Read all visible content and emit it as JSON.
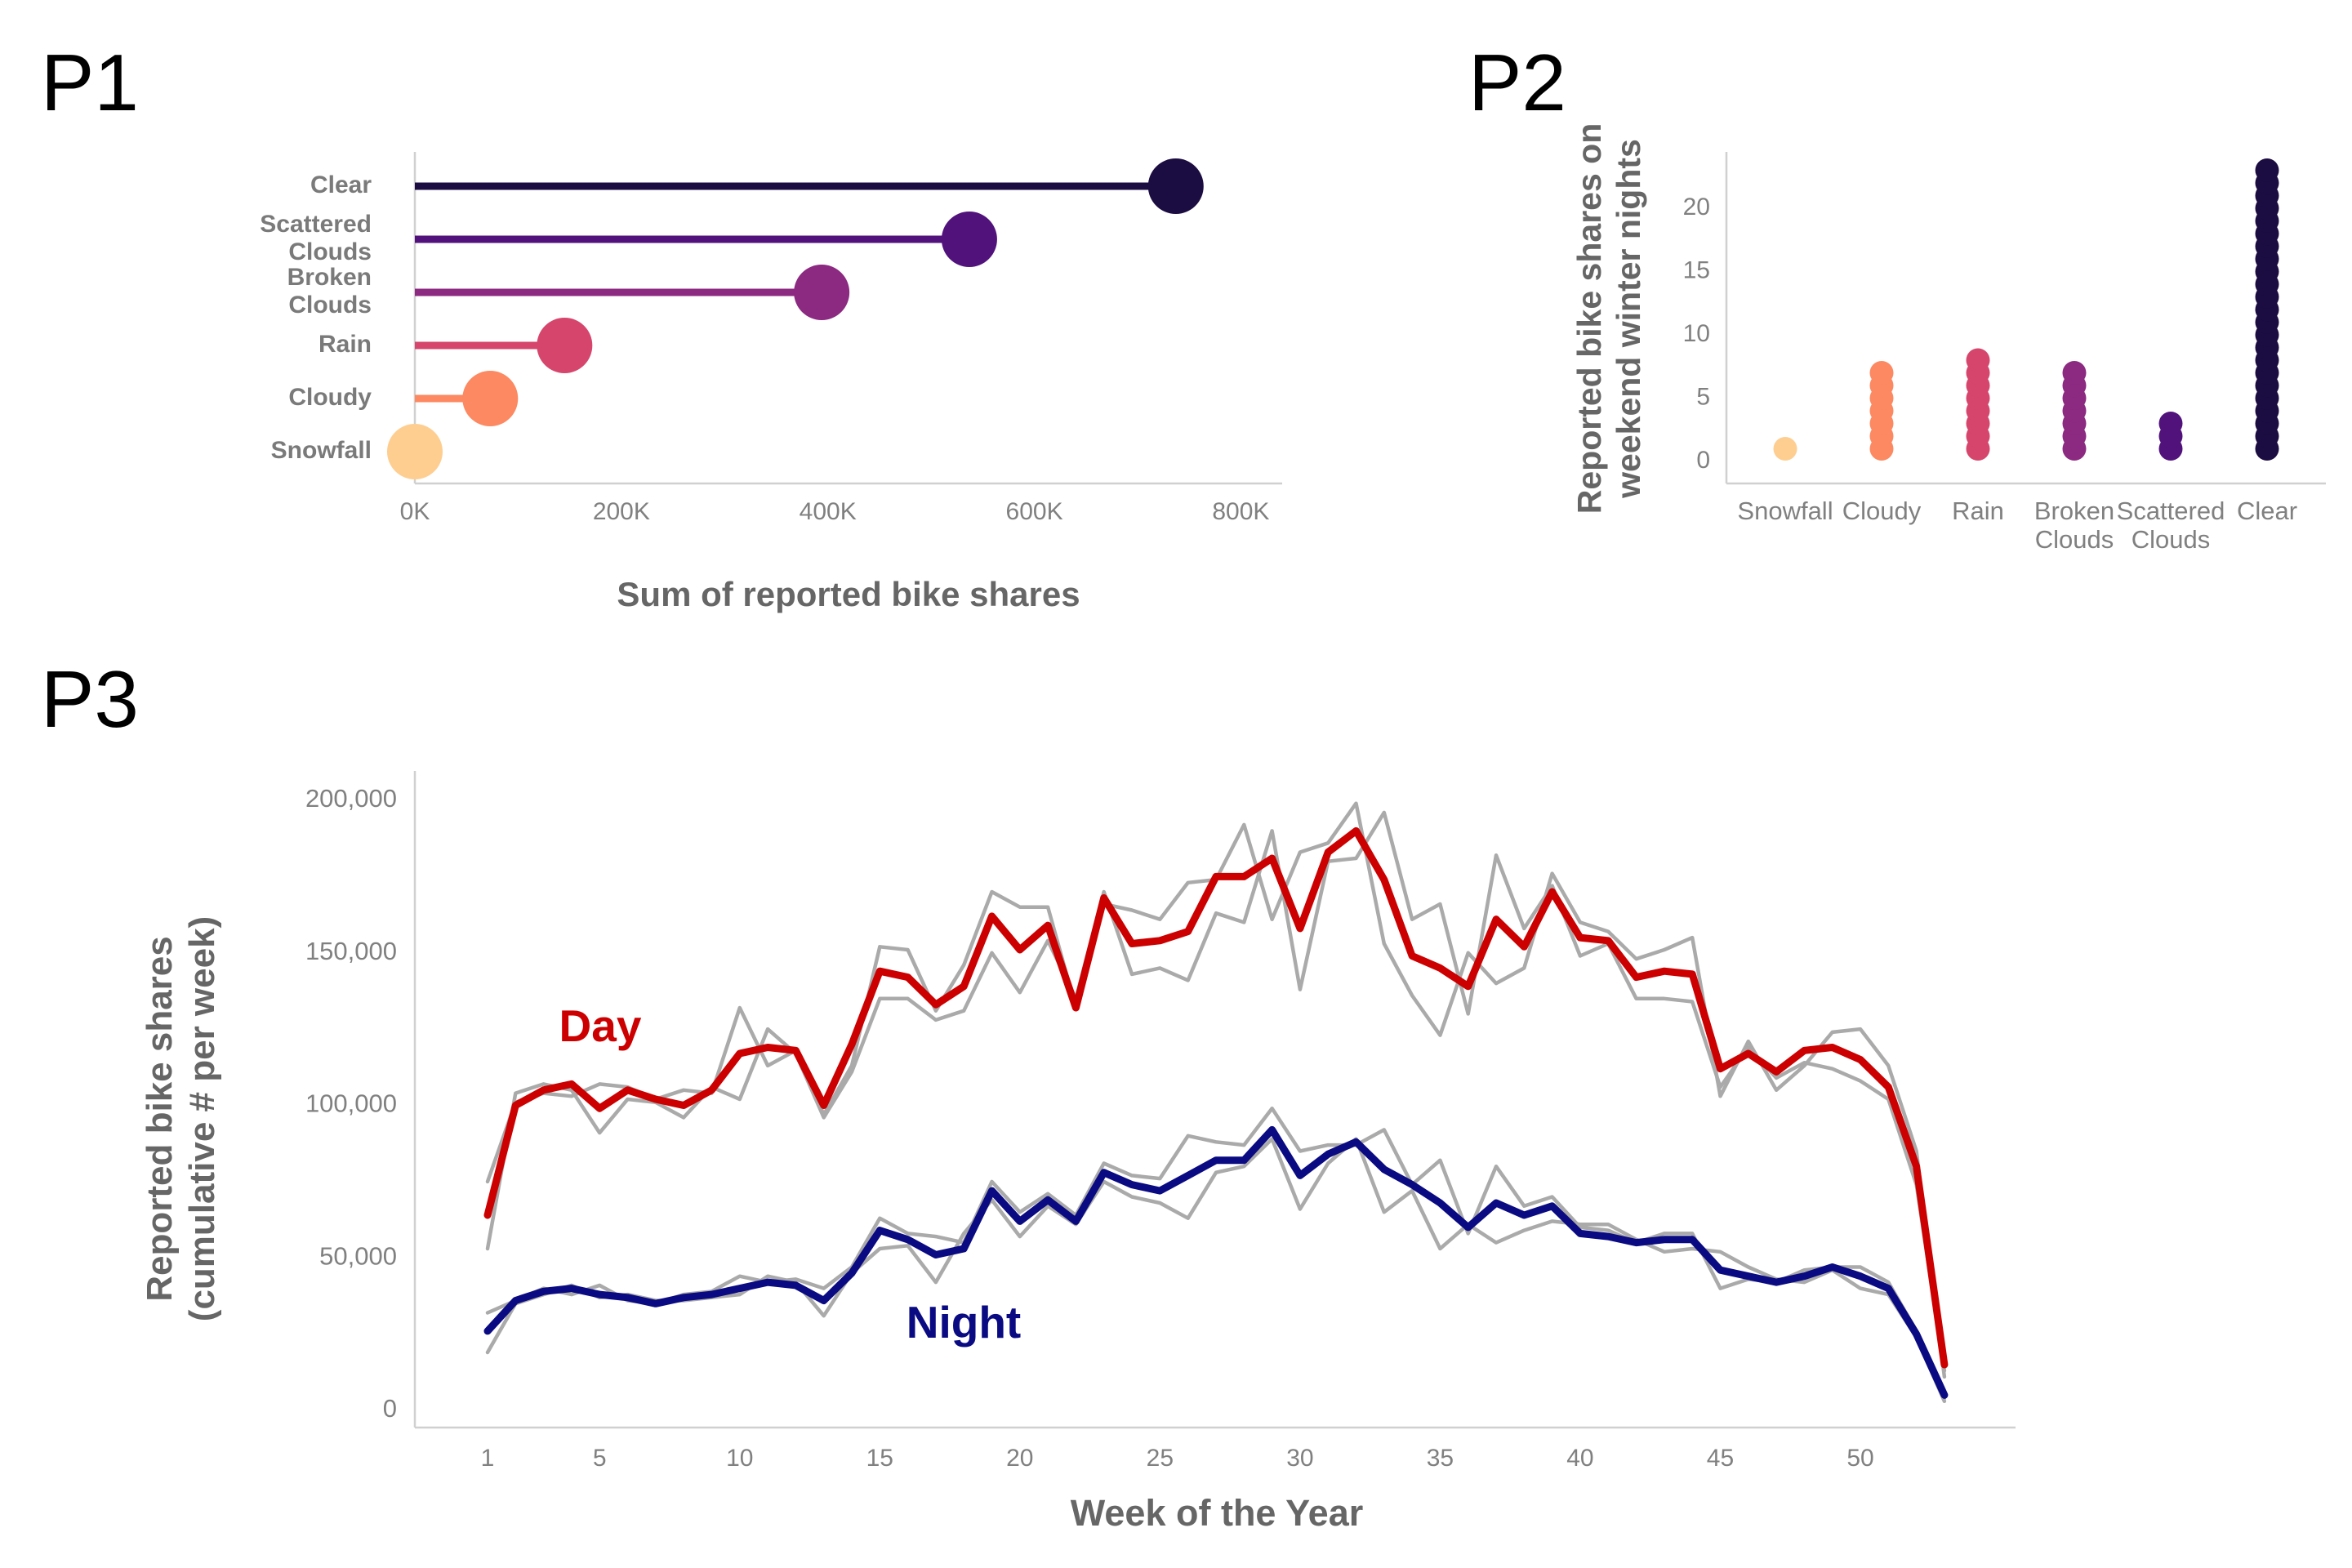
{
  "panels": {
    "p1": "P1",
    "p2": "P2",
    "p3": "P3"
  },
  "chart_data": [
    {
      "id": "P1",
      "type": "lollipop",
      "orientation": "horizontal",
      "categories": [
        "Clear",
        "Scattered Clouds",
        "Broken Clouds",
        "Rain",
        "Cloudy",
        "Snowfall"
      ],
      "category_labels": [
        [
          "Clear"
        ],
        [
          "Scattered",
          "Clouds"
        ],
        [
          "Broken",
          "Clouds"
        ],
        [
          "Rain"
        ],
        [
          "Cloudy"
        ],
        [
          "Snowfall"
        ]
      ],
      "values": [
        737000,
        537000,
        394000,
        145000,
        73000,
        0
      ],
      "colors": [
        "#1b0c41",
        "#51127c",
        "#8c2981",
        "#d6456c",
        "#fc8961",
        "#fece91"
      ],
      "xlim": [
        0,
        840000
      ],
      "xticks": [
        0,
        200000,
        400000,
        600000,
        800000
      ],
      "xtick_labels": [
        "0K",
        "200K",
        "400K",
        "600K",
        "800K"
      ],
      "xlabel": "Sum of reported bike shares",
      "ylabel": ""
    },
    {
      "id": "P2",
      "type": "dotplot",
      "categories": [
        "Snowfall",
        "Cloudy",
        "Rain",
        "Broken Clouds",
        "Scattered Clouds",
        "Clear"
      ],
      "category_labels": [
        [
          "Snowfall"
        ],
        [
          "Cloudy"
        ],
        [
          "Rain"
        ],
        [
          "Broken",
          "Clouds"
        ],
        [
          "Scattered",
          "Clouds"
        ],
        [
          "Clear"
        ]
      ],
      "counts": [
        1,
        7,
        8,
        7,
        3,
        23
      ],
      "colors": [
        "#fece91",
        "#fc8961",
        "#d6456c",
        "#8c2981",
        "#51127c",
        "#1b0c41"
      ],
      "ylim": [
        0,
        24
      ],
      "yticks": [
        0,
        5,
        10,
        15,
        20
      ],
      "ytick_labels": [
        "0",
        "5",
        "10",
        "15",
        "20"
      ],
      "ylabel_lines": [
        "Reported bike shares on",
        "weekend winter nights"
      ],
      "xlabel": ""
    },
    {
      "id": "P3",
      "type": "line",
      "x": [
        1,
        2,
        3,
        4,
        5,
        6,
        7,
        8,
        9,
        10,
        11,
        12,
        13,
        14,
        15,
        16,
        17,
        18,
        19,
        20,
        21,
        22,
        23,
        24,
        25,
        26,
        27,
        28,
        29,
        30,
        31,
        32,
        33,
        34,
        35,
        36,
        37,
        38,
        39,
        40,
        41,
        42,
        43,
        44,
        45,
        46,
        47,
        48,
        49,
        50,
        51,
        52,
        53
      ],
      "series": [
        {
          "name": "Day",
          "role": "highlight",
          "color": "#cc0000",
          "values": [
            64000,
            100000,
            105000,
            107000,
            99000,
            105000,
            102000,
            100000,
            105000,
            117000,
            119000,
            118000,
            100000,
            120000,
            144000,
            142000,
            133000,
            139000,
            162000,
            151000,
            159000,
            132000,
            168000,
            153000,
            154000,
            157000,
            175000,
            175000,
            181000,
            158000,
            183000,
            190000,
            174000,
            149000,
            145000,
            139000,
            161000,
            152000,
            170000,
            155000,
            154000,
            142000,
            144000,
            143000,
            112000,
            117000,
            111000,
            118000,
            119000,
            115000,
            106000,
            80000,
            15000
          ]
        },
        {
          "name": "Day (year A)",
          "role": "context",
          "color": "#aaaaaa",
          "values": [
            75000,
            101000,
            104000,
            103000,
            107000,
            106000,
            102000,
            105000,
            104000,
            132000,
            113000,
            118000,
            97000,
            113000,
            152000,
            151000,
            131000,
            146000,
            170000,
            165000,
            165000,
            132000,
            166000,
            164000,
            161000,
            173000,
            174000,
            192000,
            161000,
            183000,
            186000,
            199000,
            153000,
            136000,
            123000,
            150000,
            140000,
            145000,
            176000,
            160000,
            157000,
            148000,
            151000,
            155000,
            103000,
            121000,
            105000,
            113000,
            124000,
            125000,
            113000,
            85000,
            11000
          ]
        },
        {
          "name": "Day (year B)",
          "role": "context",
          "color": "#aaaaaa",
          "values": [
            53000,
            104000,
            107000,
            105000,
            91000,
            102000,
            101000,
            96000,
            106000,
            102000,
            125000,
            117000,
            96000,
            111000,
            135000,
            135000,
            128000,
            131000,
            150000,
            137000,
            154000,
            135000,
            170000,
            143000,
            145000,
            141000,
            163000,
            160000,
            190000,
            138000,
            180000,
            181000,
            196000,
            161000,
            166000,
            130000,
            182000,
            158000,
            172000,
            149000,
            153000,
            135000,
            135000,
            134000,
            106000,
            119000,
            109000,
            114000,
            112000,
            108000,
            102000,
            74000,
            13000
          ]
        },
        {
          "name": "Night",
          "role": "highlight",
          "color": "#0a0a82",
          "values": [
            26000,
            36000,
            39000,
            40000,
            38000,
            37000,
            35000,
            37000,
            38000,
            40000,
            42000,
            41000,
            36000,
            45000,
            59000,
            56000,
            51000,
            53000,
            72000,
            62000,
            69000,
            62000,
            78000,
            74000,
            72000,
            77000,
            82000,
            82000,
            92000,
            77000,
            84000,
            88000,
            79000,
            74000,
            68000,
            60000,
            68000,
            64000,
            67000,
            58000,
            57000,
            55000,
            56000,
            56000,
            46000,
            44000,
            42000,
            44000,
            47000,
            44000,
            40000,
            25000,
            5000
          ]
        },
        {
          "name": "Night (year A)",
          "role": "context",
          "color": "#aaaaaa",
          "values": [
            32000,
            36000,
            40000,
            38000,
            41000,
            36000,
            35000,
            38000,
            39000,
            44000,
            42000,
            43000,
            40000,
            47000,
            63000,
            58000,
            57000,
            55000,
            75000,
            65000,
            71000,
            64000,
            81000,
            77000,
            76000,
            90000,
            88000,
            87000,
            99000,
            85000,
            87000,
            87000,
            92000,
            74000,
            82000,
            58000,
            80000,
            67000,
            70000,
            60000,
            59000,
            55000,
            58000,
            58000,
            40000,
            43000,
            42000,
            46000,
            47000,
            47000,
            42000,
            26000,
            4000
          ]
        },
        {
          "name": "Night (year B)",
          "role": "context",
          "color": "#aaaaaa",
          "values": [
            19000,
            35000,
            38000,
            41000,
            37000,
            38000,
            36000,
            36000,
            37000,
            38000,
            44000,
            42000,
            31000,
            45000,
            53000,
            54000,
            42000,
            58000,
            69000,
            57000,
            67000,
            61000,
            75000,
            70000,
            68000,
            63000,
            78000,
            80000,
            89000,
            66000,
            81000,
            89000,
            65000,
            72000,
            53000,
            61000,
            55000,
            59000,
            62000,
            61000,
            61000,
            56000,
            52000,
            53000,
            52000,
            47000,
            43000,
            42000,
            46000,
            40000,
            38000,
            24000,
            3000
          ]
        }
      ],
      "labels": {
        "day": "Day",
        "night": "Night"
      },
      "xlim": [
        -1.5,
        56
      ],
      "ylim": [
        0,
        205000
      ],
      "xticks": [
        1,
        5,
        10,
        15,
        20,
        25,
        30,
        35,
        40,
        45,
        50
      ],
      "xtick_labels": [
        "1",
        "5",
        "10",
        "15",
        "20",
        "25",
        "30",
        "35",
        "40",
        "45",
        "50"
      ],
      "yticks": [
        0,
        50000,
        100000,
        150000,
        200000
      ],
      "ytick_labels": [
        "0",
        "50,000",
        "100,000",
        "150,000",
        "200,000"
      ],
      "xlabel": "Week of the Year",
      "ylabel_lines": [
        "Reported bike shares",
        "(cumulative # per week)"
      ]
    }
  ]
}
